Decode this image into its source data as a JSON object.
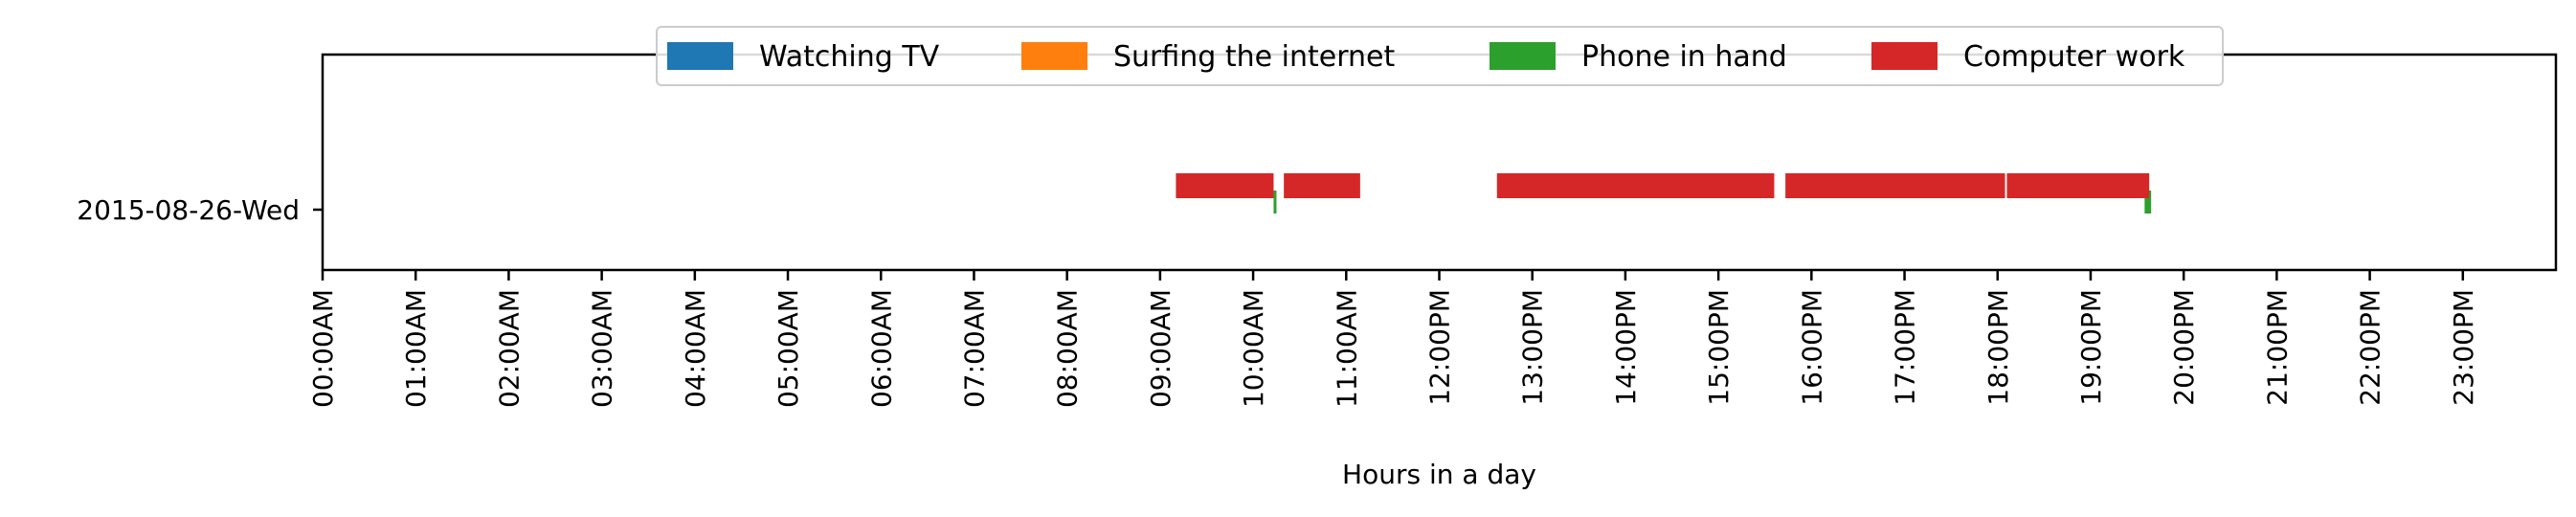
{
  "chart_data": {
    "type": "timeline",
    "xlabel": "Hours in a day",
    "xlim": [
      0,
      24
    ],
    "x_ticks": [
      0,
      1,
      2,
      3,
      4,
      5,
      6,
      7,
      8,
      9,
      10,
      11,
      12,
      13,
      14,
      15,
      16,
      17,
      18,
      19,
      20,
      21,
      22,
      23
    ],
    "x_tick_labels": [
      "00:00AM",
      "01:00AM",
      "02:00AM",
      "03:00AM",
      "04:00AM",
      "05:00AM",
      "06:00AM",
      "07:00AM",
      "08:00AM",
      "09:00AM",
      "10:00AM",
      "11:00AM",
      "12:00PM",
      "13:00PM",
      "14:00PM",
      "15:00PM",
      "16:00PM",
      "17:00PM",
      "18:00PM",
      "19:00PM",
      "20:00PM",
      "21:00PM",
      "22:00PM",
      "23:00PM"
    ],
    "categories": [
      "2015-08-26-Wed"
    ],
    "legend_position": "top-center",
    "series": [
      {
        "name": "Watching TV",
        "color": "#1f77b4",
        "intervals": []
      },
      {
        "name": "Surfing the internet",
        "color": "#ff7f0e",
        "intervals": []
      },
      {
        "name": "Phone in hand",
        "color": "#2ca02c",
        "intervals": [
          [
            10.22,
            10.25
          ],
          [
            19.58,
            19.65
          ]
        ]
      },
      {
        "name": "Computer work",
        "color": "#d62728",
        "intervals": [
          [
            9.17,
            10.22
          ],
          [
            10.33,
            11.15
          ],
          [
            12.62,
            15.6
          ],
          [
            15.72,
            18.08
          ],
          [
            18.1,
            19.63
          ]
        ]
      }
    ]
  }
}
